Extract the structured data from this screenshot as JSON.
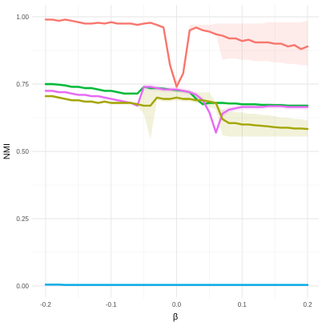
{
  "chart_data": {
    "type": "line",
    "xlabel": "β",
    "ylabel": "NMI",
    "xlim": [
      -0.2,
      0.2
    ],
    "ylim": [
      -0.02,
      1.02
    ],
    "grid": true,
    "legend": "none",
    "x_ticks": [
      {
        "value": -0.2,
        "label": "-0.2"
      },
      {
        "value": -0.1,
        "label": "-0.1"
      },
      {
        "value": 0.0,
        "label": "0.0"
      },
      {
        "value": 0.1,
        "label": "0.1"
      },
      {
        "value": 0.2,
        "label": "0.2"
      }
    ],
    "y_ticks": [
      {
        "value": 0.0,
        "label": "0.00"
      },
      {
        "value": 0.25,
        "label": "0.25"
      },
      {
        "value": 0.5,
        "label": "0.50"
      },
      {
        "value": 0.75,
        "label": "0.75"
      },
      {
        "value": 1.0,
        "label": "1.00"
      }
    ],
    "x": [
      -0.2,
      -0.19,
      -0.18,
      -0.17,
      -0.16,
      -0.15,
      -0.14,
      -0.13,
      -0.12,
      -0.11,
      -0.1,
      -0.09,
      -0.08,
      -0.07,
      -0.06,
      -0.05,
      -0.04,
      -0.03,
      -0.02,
      -0.01,
      0.0,
      0.01,
      0.02,
      0.03,
      0.04,
      0.05,
      0.06,
      0.07,
      0.08,
      0.09,
      0.1,
      0.11,
      0.12,
      0.13,
      0.14,
      0.15,
      0.16,
      0.17,
      0.18,
      0.19,
      0.2
    ],
    "series": [
      {
        "color": "#F8766D",
        "values": [
          0.99,
          0.99,
          0.985,
          0.99,
          0.985,
          0.98,
          0.975,
          0.975,
          0.978,
          0.975,
          0.98,
          0.975,
          0.975,
          0.975,
          0.97,
          0.975,
          0.978,
          0.97,
          0.96,
          0.82,
          0.74,
          0.79,
          0.95,
          0.96,
          0.95,
          0.945,
          0.935,
          0.93,
          0.92,
          0.92,
          0.91,
          0.915,
          0.905,
          0.905,
          0.905,
          0.9,
          0.9,
          0.89,
          0.895,
          0.88,
          0.89
        ],
        "band_lower": [
          0.99,
          0.99,
          0.985,
          0.99,
          0.985,
          0.98,
          0.975,
          0.975,
          0.978,
          0.975,
          0.98,
          0.975,
          0.975,
          0.975,
          0.97,
          0.975,
          0.978,
          0.97,
          0.96,
          0.82,
          0.74,
          0.79,
          0.95,
          0.96,
          0.95,
          0.945,
          0.935,
          0.84,
          0.845,
          0.845,
          0.84,
          0.84,
          0.835,
          0.835,
          0.835,
          0.83,
          0.83,
          0.825,
          0.825,
          0.82,
          0.82
        ],
        "band_upper": [
          0.99,
          0.99,
          0.985,
          0.99,
          0.985,
          0.98,
          0.975,
          0.975,
          0.978,
          0.975,
          0.98,
          0.975,
          0.975,
          0.975,
          0.97,
          0.975,
          0.978,
          0.97,
          0.97,
          0.83,
          0.76,
          0.79,
          0.97,
          0.97,
          0.97,
          0.97,
          0.975,
          0.975,
          0.975,
          0.975,
          0.975,
          0.975,
          0.975,
          0.975,
          0.98,
          0.98,
          0.98,
          0.98,
          0.98,
          0.98,
          0.985
        ]
      },
      {
        "color": "#00BA38",
        "values": [
          0.75,
          0.75,
          0.748,
          0.745,
          0.74,
          0.74,
          0.735,
          0.735,
          0.73,
          0.725,
          0.725,
          0.72,
          0.715,
          0.715,
          0.715,
          0.74,
          0.735,
          0.735,
          0.733,
          0.73,
          0.728,
          0.725,
          0.72,
          0.695,
          0.675,
          0.68,
          0.68,
          0.68,
          0.678,
          0.678,
          0.675,
          0.675,
          0.675,
          0.673,
          0.673,
          0.672,
          0.672,
          0.67,
          0.67,
          0.67,
          0.67
        ],
        "band_lower": [
          0.745,
          0.745,
          0.743,
          0.74,
          0.735,
          0.735,
          0.73,
          0.73,
          0.725,
          0.72,
          0.72,
          0.715,
          0.71,
          0.71,
          0.71,
          0.735,
          0.73,
          0.73,
          0.728,
          0.725,
          0.72,
          0.72,
          0.715,
          0.69,
          0.67,
          0.675,
          0.675,
          0.675,
          0.673,
          0.673,
          0.67,
          0.67,
          0.67,
          0.668,
          0.668,
          0.667,
          0.667,
          0.665,
          0.665,
          0.665,
          0.665
        ],
        "band_upper": [
          0.755,
          0.755,
          0.753,
          0.75,
          0.745,
          0.745,
          0.74,
          0.74,
          0.735,
          0.73,
          0.73,
          0.725,
          0.72,
          0.72,
          0.72,
          0.745,
          0.74,
          0.74,
          0.738,
          0.735,
          0.733,
          0.73,
          0.725,
          0.7,
          0.68,
          0.685,
          0.685,
          0.685,
          0.683,
          0.683,
          0.68,
          0.68,
          0.68,
          0.678,
          0.678,
          0.677,
          0.677,
          0.675,
          0.675,
          0.675,
          0.675
        ]
      },
      {
        "color": "#E76BF3",
        "values": [
          0.725,
          0.725,
          0.72,
          0.72,
          0.715,
          0.71,
          0.71,
          0.705,
          0.705,
          0.7,
          0.695,
          0.69,
          0.685,
          0.68,
          0.67,
          0.74,
          0.74,
          0.735,
          0.73,
          0.73,
          0.73,
          0.725,
          0.72,
          0.71,
          0.69,
          0.645,
          0.57,
          0.64,
          0.655,
          0.66,
          0.665,
          0.665,
          0.665,
          0.665,
          0.668,
          0.668,
          0.668,
          0.665,
          0.665,
          0.665,
          0.665
        ],
        "band_lower": [
          0.72,
          0.72,
          0.715,
          0.715,
          0.71,
          0.705,
          0.705,
          0.7,
          0.7,
          0.695,
          0.69,
          0.685,
          0.68,
          0.675,
          0.665,
          0.73,
          0.725,
          0.725,
          0.72,
          0.72,
          0.72,
          0.715,
          0.71,
          0.7,
          0.68,
          0.635,
          0.56,
          0.625,
          0.645,
          0.65,
          0.655,
          0.655,
          0.655,
          0.655,
          0.658,
          0.658,
          0.658,
          0.655,
          0.655,
          0.655,
          0.655
        ],
        "band_upper": [
          0.73,
          0.73,
          0.725,
          0.725,
          0.72,
          0.715,
          0.715,
          0.71,
          0.71,
          0.705,
          0.7,
          0.695,
          0.69,
          0.685,
          0.68,
          0.75,
          0.75,
          0.745,
          0.74,
          0.74,
          0.74,
          0.735,
          0.73,
          0.72,
          0.7,
          0.655,
          0.585,
          0.655,
          0.665,
          0.67,
          0.675,
          0.675,
          0.675,
          0.675,
          0.678,
          0.678,
          0.678,
          0.675,
          0.675,
          0.675,
          0.675
        ]
      },
      {
        "color": "#A3A500",
        "values": [
          0.705,
          0.705,
          0.7,
          0.695,
          0.69,
          0.69,
          0.685,
          0.685,
          0.68,
          0.685,
          0.68,
          0.68,
          0.68,
          0.68,
          0.675,
          0.67,
          0.67,
          0.7,
          0.695,
          0.695,
          0.7,
          0.695,
          0.695,
          0.69,
          0.69,
          0.685,
          0.68,
          0.62,
          0.605,
          0.605,
          0.6,
          0.6,
          0.597,
          0.595,
          0.593,
          0.59,
          0.588,
          0.588,
          0.585,
          0.585,
          0.583
        ],
        "band_lower": [
          0.7,
          0.7,
          0.695,
          0.69,
          0.685,
          0.685,
          0.68,
          0.68,
          0.675,
          0.68,
          0.675,
          0.675,
          0.675,
          0.675,
          0.665,
          0.64,
          0.545,
          0.69,
          0.685,
          0.685,
          0.69,
          0.685,
          0.685,
          0.68,
          0.675,
          0.665,
          0.655,
          0.56,
          0.555,
          0.555,
          0.555,
          0.555,
          0.555,
          0.555,
          0.555,
          0.555,
          0.555,
          0.555,
          0.555,
          0.555,
          0.555
        ],
        "band_upper": [
          0.71,
          0.71,
          0.705,
          0.7,
          0.695,
          0.695,
          0.69,
          0.69,
          0.685,
          0.69,
          0.685,
          0.685,
          0.685,
          0.685,
          0.68,
          0.73,
          0.735,
          0.735,
          0.73,
          0.73,
          0.73,
          0.725,
          0.725,
          0.72,
          0.72,
          0.72,
          0.68,
          0.655,
          0.65,
          0.645,
          0.645,
          0.64,
          0.64,
          0.635,
          0.635,
          0.63,
          0.625,
          0.625,
          0.62,
          0.62,
          0.615
        ]
      },
      {
        "color": "#00A9E6",
        "values": [
          0.005,
          0.005,
          0.005,
          0.004,
          0.004,
          0.004,
          0.004,
          0.004,
          0.004,
          0.004,
          0.004,
          0.004,
          0.004,
          0.004,
          0.004,
          0.004,
          0.004,
          0.004,
          0.004,
          0.004,
          0.004,
          0.004,
          0.004,
          0.004,
          0.004,
          0.004,
          0.004,
          0.004,
          0.004,
          0.004,
          0.004,
          0.004,
          0.004,
          0.004,
          0.004,
          0.004,
          0.004,
          0.004,
          0.004,
          0.004,
          0.004
        ],
        "band_lower": [
          0.003,
          0.003,
          0.003,
          0.002,
          0.002,
          0.002,
          0.002,
          0.002,
          0.002,
          0.002,
          0.002,
          0.002,
          0.002,
          0.002,
          0.002,
          0.002,
          0.002,
          0.002,
          0.002,
          0.002,
          0.002,
          0.002,
          0.002,
          0.002,
          0.002,
          0.002,
          0.002,
          0.002,
          0.002,
          0.002,
          0.002,
          0.002,
          0.002,
          0.002,
          0.002,
          0.002,
          0.002,
          0.002,
          0.002,
          0.002,
          0.002
        ],
        "band_upper": [
          0.007,
          0.007,
          0.007,
          0.006,
          0.006,
          0.006,
          0.006,
          0.006,
          0.006,
          0.006,
          0.006,
          0.006,
          0.006,
          0.006,
          0.006,
          0.006,
          0.006,
          0.006,
          0.006,
          0.006,
          0.006,
          0.006,
          0.006,
          0.006,
          0.006,
          0.006,
          0.006,
          0.006,
          0.006,
          0.006,
          0.006,
          0.006,
          0.006,
          0.006,
          0.006,
          0.006,
          0.006,
          0.006,
          0.006,
          0.006,
          0.006
        ]
      }
    ]
  }
}
